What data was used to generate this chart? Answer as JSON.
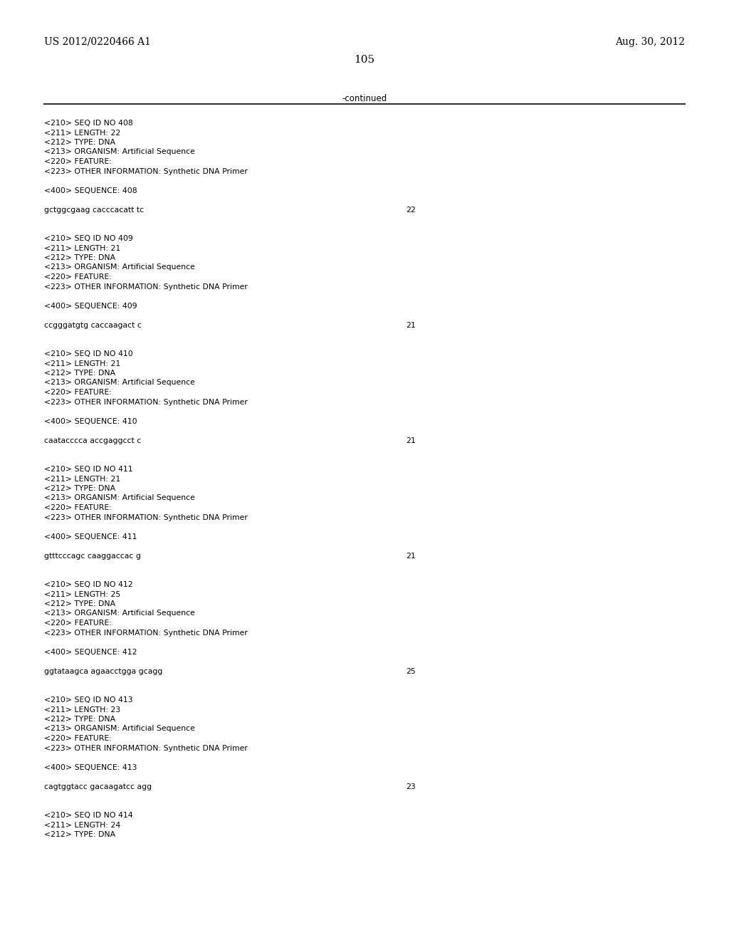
{
  "top_left": "US 2012/0220466 A1",
  "top_right": "Aug. 30, 2012",
  "page_number": "105",
  "continued_label": "-continued",
  "background_color": "#ffffff",
  "text_color": "#000000",
  "mono_font": "Courier New",
  "serif_font": "DejaVu Serif",
  "line_color": "#333333",
  "entries": [
    {
      "seq_id": "408",
      "length": "22",
      "type": "DNA",
      "organism": "Artificial Sequence",
      "other_info": "Synthetic DNA Primer",
      "sequence": "gctggcgaag cacccacatt tc",
      "seq_length_num": "22"
    },
    {
      "seq_id": "409",
      "length": "21",
      "type": "DNA",
      "organism": "Artificial Sequence",
      "other_info": "Synthetic DNA Primer",
      "sequence": "ccgggatgtg caccaagact c",
      "seq_length_num": "21"
    },
    {
      "seq_id": "410",
      "length": "21",
      "type": "DNA",
      "organism": "Artificial Sequence",
      "other_info": "Synthetic DNA Primer",
      "sequence": "caatacccca accgaggcct c",
      "seq_length_num": "21"
    },
    {
      "seq_id": "411",
      "length": "21",
      "type": "DNA",
      "organism": "Artificial Sequence",
      "other_info": "Synthetic DNA Primer",
      "sequence": "gtttcccagc caaggaccac g",
      "seq_length_num": "21"
    },
    {
      "seq_id": "412",
      "length": "25",
      "type": "DNA",
      "organism": "Artificial Sequence",
      "other_info": "Synthetic DNA Primer",
      "sequence": "ggtataagca agaacctgga gcagg",
      "seq_length_num": "25"
    },
    {
      "seq_id": "413",
      "length": "23",
      "type": "DNA",
      "organism": "Artificial Sequence",
      "other_info": "Synthetic DNA Primer",
      "sequence": "cagtggtacc gacaagatcc agg",
      "seq_length_num": "23"
    },
    {
      "seq_id": "414",
      "length": "24",
      "type": "DNA",
      "organism": "",
      "other_info": "",
      "sequence": "",
      "seq_length_num": ""
    }
  ]
}
